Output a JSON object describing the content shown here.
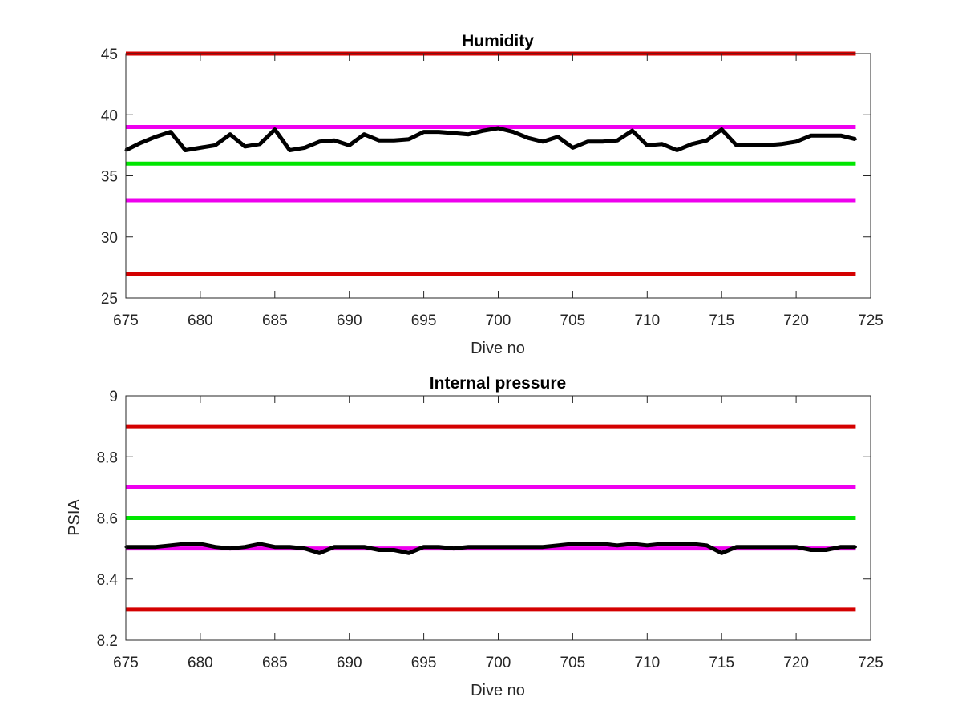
{
  "chart_data": [
    {
      "type": "line",
      "title": "Humidity",
      "xlabel": "Dive no",
      "ylabel": "",
      "xlim": [
        675,
        725
      ],
      "ylim": [
        25,
        45
      ],
      "xticks": [
        "675",
        "680",
        "685",
        "690",
        "695",
        "700",
        "705",
        "710",
        "715",
        "720",
        "725"
      ],
      "yticks": [
        "25",
        "30",
        "35",
        "40",
        "45"
      ],
      "grid": false,
      "x_range": [
        675,
        724
      ],
      "reference_lines": [
        {
          "y": 45,
          "color": "#d40000"
        },
        {
          "y": 39,
          "color": "#ee00ee"
        },
        {
          "y": 36,
          "color": "#00e600"
        },
        {
          "y": 33,
          "color": "#ee00ee"
        },
        {
          "y": 27,
          "color": "#d40000"
        }
      ],
      "series": [
        {
          "color": "#000000",
          "x": [
            675,
            676,
            677,
            678,
            679,
            680,
            681,
            682,
            683,
            684,
            685,
            686,
            687,
            688,
            689,
            690,
            691,
            692,
            693,
            694,
            695,
            696,
            697,
            698,
            699,
            700,
            701,
            702,
            703,
            704,
            705,
            706,
            707,
            708,
            709,
            710,
            711,
            712,
            713,
            714,
            715,
            716,
            717,
            718,
            719,
            720,
            721,
            722,
            723,
            724
          ],
          "y": [
            37.1,
            37.7,
            38.2,
            38.6,
            37.1,
            37.3,
            37.5,
            38.4,
            37.4,
            37.6,
            38.8,
            37.1,
            37.3,
            37.8,
            37.9,
            37.5,
            38.4,
            37.9,
            37.9,
            38.0,
            38.6,
            38.6,
            38.5,
            38.4,
            38.7,
            38.9,
            38.6,
            38.1,
            37.8,
            38.2,
            37.3,
            37.8,
            37.8,
            37.9,
            38.7,
            37.5,
            37.6,
            37.1,
            37.6,
            37.9,
            38.8,
            37.5,
            37.5,
            37.5,
            37.6,
            37.8,
            38.3,
            38.3,
            38.3,
            38.0
          ]
        }
      ]
    },
    {
      "type": "line",
      "title": "Internal pressure",
      "xlabel": "Dive no",
      "ylabel": "PSIA",
      "xlim": [
        675,
        725
      ],
      "ylim": [
        8.2,
        9
      ],
      "xticks": [
        "675",
        "680",
        "685",
        "690",
        "695",
        "700",
        "705",
        "710",
        "715",
        "720",
        "725"
      ],
      "yticks": [
        "8.2",
        "8.4",
        "8.6",
        "8.8",
        "9"
      ],
      "grid": false,
      "x_range": [
        675,
        724
      ],
      "reference_lines": [
        {
          "y": 8.9,
          "color": "#d40000"
        },
        {
          "y": 8.7,
          "color": "#ee00ee"
        },
        {
          "y": 8.6,
          "color": "#00e600"
        },
        {
          "y": 8.5,
          "color": "#ee00ee"
        },
        {
          "y": 8.3,
          "color": "#d40000"
        }
      ],
      "series": [
        {
          "color": "#000000",
          "x": [
            675,
            676,
            677,
            678,
            679,
            680,
            681,
            682,
            683,
            684,
            685,
            686,
            687,
            688,
            689,
            690,
            691,
            692,
            693,
            694,
            695,
            696,
            697,
            698,
            699,
            700,
            701,
            702,
            703,
            704,
            705,
            706,
            707,
            708,
            709,
            710,
            711,
            712,
            713,
            714,
            715,
            716,
            717,
            718,
            719,
            720,
            721,
            722,
            723,
            724
          ],
          "y": [
            8.505,
            8.505,
            8.505,
            8.51,
            8.515,
            8.515,
            8.505,
            8.5,
            8.505,
            8.515,
            8.505,
            8.505,
            8.5,
            8.485,
            8.505,
            8.505,
            8.505,
            8.495,
            8.495,
            8.485,
            8.505,
            8.505,
            8.5,
            8.505,
            8.505,
            8.505,
            8.505,
            8.505,
            8.505,
            8.51,
            8.515,
            8.515,
            8.515,
            8.51,
            8.515,
            8.51,
            8.515,
            8.515,
            8.515,
            8.51,
            8.485,
            8.505,
            8.505,
            8.505,
            8.505,
            8.505,
            8.495,
            8.495,
            8.505,
            8.505
          ]
        }
      ]
    }
  ]
}
